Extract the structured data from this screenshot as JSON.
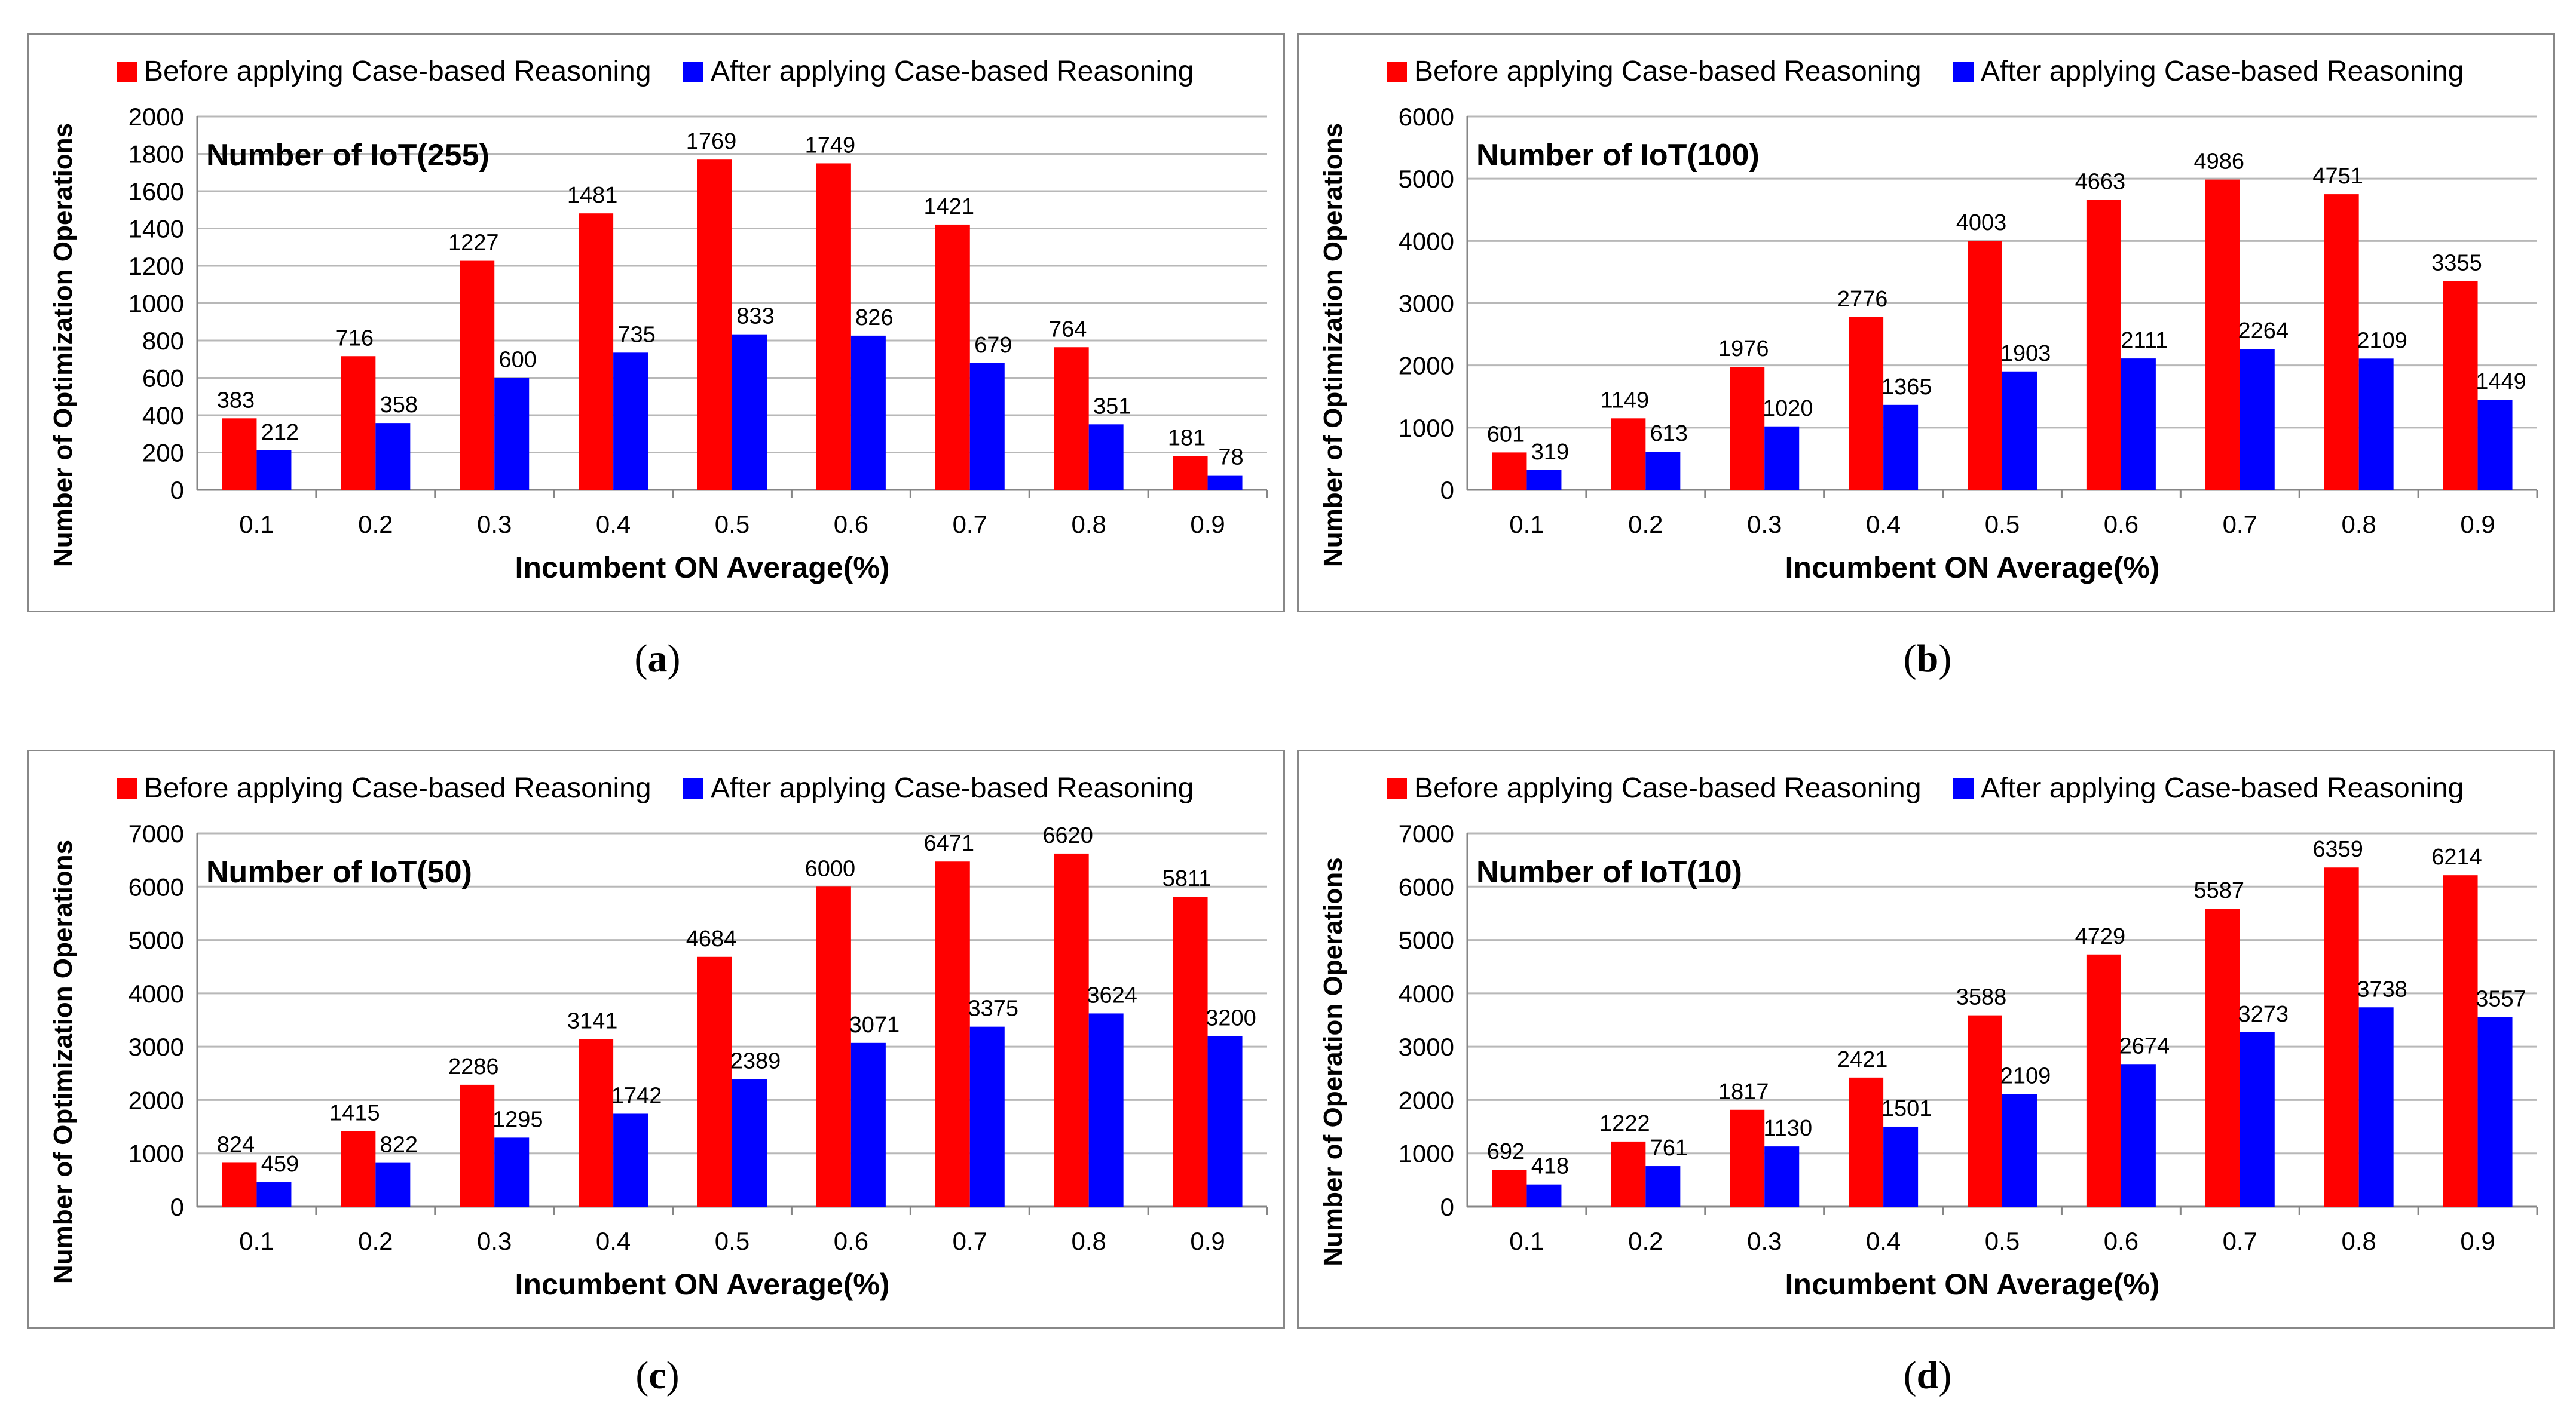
{
  "colors": {
    "before": "#ff0000",
    "after": "#0000ff",
    "grid": "#b8b8b8",
    "frame": "#888888",
    "text": "#000000"
  },
  "legend": {
    "before": "Before applying Case-based Reasoning",
    "after": "After applying Case-based Reasoning"
  },
  "chart_data": [
    {
      "type": "bar",
      "caption_letter": "a",
      "annotation": "Number  of  IoT(255)",
      "xlabel": "Incumbent ON Average(%)",
      "ylabel": "Number of Optimization Operations",
      "categories": [
        "0.1",
        "0.2",
        "0.3",
        "0.4",
        "0.5",
        "0.6",
        "0.7",
        "0.8",
        "0.9"
      ],
      "ylim": [
        0,
        2000
      ],
      "yticks": [
        0,
        200,
        400,
        600,
        800,
        1000,
        1200,
        1400,
        1600,
        1800,
        2000
      ],
      "grid": true,
      "legend_position": "top",
      "series": [
        {
          "name": "Before applying Case-based Reasoning",
          "values": [
            383,
            716,
            1227,
            1481,
            1769,
            1749,
            1421,
            764,
            181
          ]
        },
        {
          "name": "After applying Case-based Reasoning",
          "values": [
            212,
            358,
            600,
            735,
            833,
            826,
            679,
            351,
            78
          ]
        }
      ]
    },
    {
      "type": "bar",
      "caption_letter": "b",
      "annotation": "Number  of  IoT(100)",
      "xlabel": "Incumbent ON Average(%)",
      "ylabel": "Number of Optimization Operations",
      "categories": [
        "0.1",
        "0.2",
        "0.3",
        "0.4",
        "0.5",
        "0.6",
        "0.7",
        "0.8",
        "0.9"
      ],
      "ylim": [
        0,
        6000
      ],
      "yticks": [
        0,
        1000,
        2000,
        3000,
        4000,
        5000,
        6000
      ],
      "grid": true,
      "legend_position": "top",
      "series": [
        {
          "name": "Before applying Case-based Reasoning",
          "values": [
            601,
            1149,
            1976,
            2776,
            4003,
            4663,
            4986,
            4751,
            3355
          ]
        },
        {
          "name": "After applying Case-based Reasoning",
          "values": [
            319,
            613,
            1020,
            1365,
            1903,
            2111,
            2264,
            2109,
            1449
          ]
        }
      ]
    },
    {
      "type": "bar",
      "caption_letter": "c",
      "annotation": "Number  of  IoT(50)",
      "xlabel": "Incumbent ON Average(%)",
      "ylabel": "Number of Optimization Operations",
      "categories": [
        "0.1",
        "0.2",
        "0.3",
        "0.4",
        "0.5",
        "0.6",
        "0.7",
        "0.8",
        "0.9"
      ],
      "ylim": [
        0,
        7000
      ],
      "yticks": [
        0,
        1000,
        2000,
        3000,
        4000,
        5000,
        6000,
        7000
      ],
      "grid": true,
      "legend_position": "top",
      "series": [
        {
          "name": "Before applying Case-based Reasoning",
          "values": [
            824,
            1415,
            2286,
            3141,
            4684,
            6000,
            6471,
            6620,
            5811
          ]
        },
        {
          "name": "After applying Case-based Reasoning",
          "values": [
            459,
            822,
            1295,
            1742,
            2389,
            3071,
            3375,
            3624,
            3200
          ]
        }
      ]
    },
    {
      "type": "bar",
      "caption_letter": "d",
      "annotation": "Number  of  IoT(10)",
      "xlabel": "Incumbent ON Average(%)",
      "ylabel": "Number of Operation Operations",
      "categories": [
        "0.1",
        "0.2",
        "0.3",
        "0.4",
        "0.5",
        "0.6",
        "0.7",
        "0.8",
        "0.9"
      ],
      "ylim": [
        0,
        7000
      ],
      "yticks": [
        0,
        1000,
        2000,
        3000,
        4000,
        5000,
        6000,
        7000
      ],
      "grid": true,
      "legend_position": "top",
      "series": [
        {
          "name": "Before applying Case-based Reasoning",
          "values": [
            692,
            1222,
            1817,
            2421,
            3588,
            4729,
            5587,
            6359,
            6214
          ]
        },
        {
          "name": "After applying Case-based Reasoning",
          "values": [
            418,
            761,
            1130,
            1501,
            2109,
            2674,
            3273,
            3738,
            3557
          ]
        }
      ]
    }
  ]
}
